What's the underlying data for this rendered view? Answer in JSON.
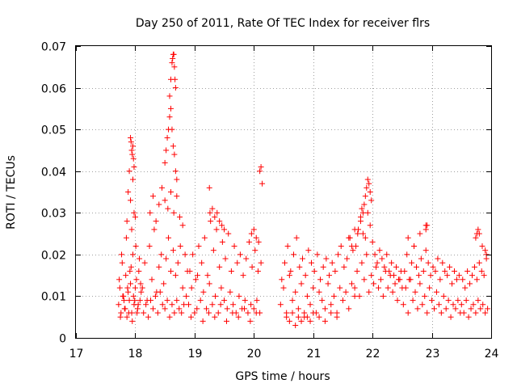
{
  "chart_data": {
    "type": "scatter",
    "title": "Day 250 of 2011, Rate Of TEC Index for receiver flrs",
    "xlabel": "GPS time / hours",
    "ylabel": "ROTI / TECUs",
    "xlim": [
      17,
      24
    ],
    "ylim": [
      0,
      0.07
    ],
    "xticks": [
      "17",
      "18",
      "19",
      "20",
      "21",
      "22",
      "23",
      "24"
    ],
    "yticks": [
      "0",
      "0.01",
      "0.02",
      "0.03",
      "0.04",
      "0.05",
      "0.06",
      "0.07"
    ],
    "grid": true,
    "marker": "+",
    "color": "#ff0000",
    "series": [
      {
        "name": "ROTI",
        "x": [
          17.72,
          17.74,
          17.76,
          17.78,
          17.8,
          17.82,
          17.84,
          17.86,
          17.88,
          17.9,
          17.92,
          17.94,
          17.96,
          17.98,
          18.0,
          18.02,
          18.04,
          18.06,
          18.08,
          18.1,
          17.73,
          17.77,
          17.81,
          17.85,
          17.89,
          17.93,
          17.97,
          18.01,
          18.05,
          18.09,
          17.75,
          17.79,
          17.83,
          17.87,
          17.91,
          17.95,
          17.99,
          18.03,
          18.07,
          17.86,
          17.88,
          17.9,
          17.92,
          17.94,
          17.96,
          17.98,
          18.0,
          17.92,
          17.93,
          17.94,
          17.95,
          17.96,
          17.97,
          17.98,
          18.12,
          18.16,
          18.2,
          18.24,
          18.28,
          18.32,
          18.36,
          18.4,
          18.44,
          18.48,
          18.52,
          18.56,
          18.6,
          18.64,
          18.68,
          18.72,
          18.76,
          18.8,
          18.84,
          18.88,
          18.14,
          18.18,
          18.22,
          18.26,
          18.3,
          18.34,
          18.38,
          18.42,
          18.46,
          18.5,
          18.54,
          18.58,
          18.62,
          18.66,
          18.7,
          18.74,
          18.78,
          18.82,
          18.86,
          18.25,
          18.3,
          18.35,
          18.4,
          18.45,
          18.5,
          18.55,
          18.6,
          18.65,
          18.7,
          18.75,
          18.8,
          18.5,
          18.52,
          18.54,
          18.56,
          18.58,
          18.6,
          18.62,
          18.64,
          18.66,
          18.68,
          18.7,
          18.58,
          18.6,
          18.62,
          18.63,
          18.64,
          18.65,
          18.66,
          18.67,
          18.68,
          18.9,
          18.95,
          19.0,
          19.05,
          19.1,
          19.15,
          19.2,
          19.25,
          19.3,
          19.35,
          19.4,
          19.45,
          19.5,
          19.55,
          19.6,
          19.65,
          19.7,
          19.75,
          19.8,
          19.85,
          19.9,
          19.95,
          20.0,
          20.05,
          20.1,
          18.92,
          18.97,
          19.02,
          19.07,
          19.12,
          19.17,
          19.22,
          19.27,
          19.32,
          19.37,
          19.42,
          19.47,
          19.52,
          19.57,
          19.62,
          19.67,
          19.72,
          19.77,
          19.82,
          19.87,
          19.92,
          19.97,
          20.02,
          20.07,
          20.12,
          18.94,
          19.04,
          19.14,
          19.24,
          19.34,
          19.44,
          19.54,
          19.64,
          19.74,
          19.84,
          19.94,
          20.04,
          19.26,
          19.3,
          19.34,
          19.38,
          19.42,
          19.46,
          19.5,
          19.96,
          20.0,
          20.04,
          20.08,
          19.25,
          20.1,
          20.12,
          20.14,
          20.45,
          20.5,
          20.55,
          20.6,
          20.65,
          20.7,
          20.75,
          20.8,
          20.85,
          20.9,
          20.95,
          21.0,
          21.05,
          21.1,
          21.15,
          21.2,
          21.25,
          21.3,
          21.35,
          21.4,
          21.45,
          21.5,
          21.55,
          21.6,
          21.65,
          21.7,
          20.47,
          20.52,
          20.57,
          20.62,
          20.67,
          20.72,
          20.77,
          20.82,
          20.87,
          20.92,
          20.97,
          21.02,
          21.07,
          21.12,
          21.17,
          21.22,
          21.27,
          21.32,
          21.37,
          21.42,
          21.47,
          21.52,
          21.57,
          21.62,
          21.67,
          20.55,
          20.6,
          20.65,
          20.7,
          20.75,
          20.8,
          20.85,
          20.9,
          20.95,
          21.0,
          21.1,
          21.2,
          21.3,
          21.4,
          21.7,
          21.74,
          21.78,
          21.82,
          21.86,
          21.9,
          21.94,
          21.98,
          22.02,
          22.06,
          22.1,
          22.14,
          22.18,
          22.22,
          22.26,
          22.3,
          22.34,
          22.38,
          22.42,
          22.46,
          22.5,
          21.72,
          21.76,
          21.8,
          21.84,
          21.88,
          21.92,
          21.96,
          22.0,
          22.04,
          22.08,
          22.12,
          22.16,
          22.2,
          22.24,
          22.28,
          22.32,
          22.36,
          22.4,
          22.44,
          22.48,
          21.8,
          21.82,
          21.84,
          21.86,
          21.88,
          21.9,
          21.92,
          21.94,
          21.96,
          21.98,
          21.6,
          21.65,
          21.7,
          21.75,
          22.52,
          22.56,
          22.6,
          22.64,
          22.68,
          22.72,
          22.76,
          22.8,
          22.84,
          22.88,
          22.92,
          22.96,
          23.0,
          23.04,
          23.08,
          23.12,
          23.16,
          23.2,
          23.24,
          23.28,
          23.32,
          23.36,
          23.4,
          23.44,
          23.48,
          22.54,
          22.58,
          22.62,
          22.66,
          22.7,
          22.74,
          22.78,
          22.82,
          22.86,
          22.9,
          22.94,
          22.98,
          23.02,
          23.06,
          23.1,
          23.14,
          23.18,
          23.22,
          23.26,
          23.3,
          23.34,
          23.38,
          23.42,
          23.46,
          22.6,
          22.7,
          22.8,
          22.9,
          22.9,
          22.92,
          23.5,
          23.54,
          23.58,
          23.62,
          23.66,
          23.7,
          23.74,
          23.78,
          23.82,
          23.86,
          23.9,
          23.94,
          23.52,
          23.56,
          23.6,
          23.64,
          23.68,
          23.72,
          23.76,
          23.8,
          23.84,
          23.88,
          23.92,
          23.74,
          23.76,
          23.78,
          23.8,
          23.85,
          23.9,
          23.92
        ],
        "y": [
          0.008,
          0.012,
          0.006,
          0.018,
          0.01,
          0.007,
          0.015,
          0.005,
          0.011,
          0.009,
          0.013,
          0.006,
          0.02,
          0.008,
          0.012,
          0.014,
          0.007,
          0.016,
          0.009,
          0.011,
          0.014,
          0.02,
          0.009,
          0.024,
          0.006,
          0.017,
          0.01,
          0.022,
          0.008,
          0.013,
          0.005,
          0.01,
          0.007,
          0.012,
          0.016,
          0.004,
          0.009,
          0.006,
          0.019,
          0.028,
          0.035,
          0.04,
          0.033,
          0.026,
          0.038,
          0.03,
          0.029,
          0.048,
          0.047,
          0.045,
          0.044,
          0.046,
          0.043,
          0.041,
          0.012,
          0.018,
          0.009,
          0.022,
          0.014,
          0.026,
          0.011,
          0.017,
          0.02,
          0.013,
          0.019,
          0.024,
          0.016,
          0.021,
          0.015,
          0.018,
          0.022,
          0.012,
          0.02,
          0.016,
          0.006,
          0.008,
          0.005,
          0.009,
          0.007,
          0.01,
          0.006,
          0.011,
          0.008,
          0.007,
          0.009,
          0.005,
          0.008,
          0.006,
          0.009,
          0.007,
          0.006,
          0.008,
          0.01,
          0.03,
          0.034,
          0.028,
          0.032,
          0.036,
          0.033,
          0.031,
          0.035,
          0.03,
          0.034,
          0.029,
          0.027,
          0.042,
          0.045,
          0.048,
          0.05,
          0.053,
          0.055,
          0.05,
          0.046,
          0.044,
          0.04,
          0.038,
          0.058,
          0.062,
          0.066,
          0.067,
          0.068,
          0.068,
          0.065,
          0.062,
          0.06,
          0.008,
          0.012,
          0.006,
          0.015,
          0.009,
          0.011,
          0.007,
          0.013,
          0.008,
          0.01,
          0.006,
          0.012,
          0.009,
          0.007,
          0.011,
          0.008,
          0.006,
          0.01,
          0.007,
          0.009,
          0.006,
          0.008,
          0.007,
          0.009,
          0.006,
          0.016,
          0.02,
          0.014,
          0.022,
          0.018,
          0.024,
          0.015,
          0.028,
          0.021,
          0.026,
          0.017,
          0.023,
          0.019,
          0.025,
          0.016,
          0.022,
          0.018,
          0.02,
          0.015,
          0.019,
          0.023,
          0.017,
          0.021,
          0.016,
          0.018,
          0.005,
          0.007,
          0.004,
          0.006,
          0.005,
          0.008,
          0.004,
          0.006,
          0.005,
          0.007,
          0.004,
          0.006,
          0.03,
          0.031,
          0.029,
          0.03,
          0.028,
          0.027,
          0.026,
          0.025,
          0.026,
          0.024,
          0.023,
          0.036,
          0.04,
          0.041,
          0.037,
          0.008,
          0.012,
          0.006,
          0.015,
          0.009,
          0.011,
          0.007,
          0.013,
          0.005,
          0.01,
          0.008,
          0.012,
          0.006,
          0.011,
          0.009,
          0.007,
          0.013,
          0.008,
          0.01,
          0.006,
          0.012,
          0.009,
          0.011,
          0.007,
          0.013,
          0.01,
          0.014,
          0.018,
          0.022,
          0.016,
          0.02,
          0.024,
          0.017,
          0.019,
          0.015,
          0.021,
          0.018,
          0.016,
          0.02,
          0.014,
          0.017,
          0.019,
          0.015,
          0.018,
          0.016,
          0.02,
          0.022,
          0.017,
          0.019,
          0.024,
          0.021,
          0.005,
          0.004,
          0.006,
          0.003,
          0.005,
          0.004,
          0.006,
          0.005,
          0.004,
          0.006,
          0.005,
          0.004,
          0.006,
          0.005,
          0.012,
          0.016,
          0.01,
          0.018,
          0.014,
          0.02,
          0.011,
          0.015,
          0.013,
          0.017,
          0.012,
          0.014,
          0.01,
          0.016,
          0.012,
          0.015,
          0.011,
          0.013,
          0.009,
          0.014,
          0.012,
          0.022,
          0.026,
          0.028,
          0.025,
          0.024,
          0.03,
          0.027,
          0.023,
          0.02,
          0.018,
          0.021,
          0.019,
          0.017,
          0.02,
          0.016,
          0.018,
          0.015,
          0.017,
          0.014,
          0.016,
          0.029,
          0.031,
          0.03,
          0.032,
          0.034,
          0.036,
          0.038,
          0.037,
          0.035,
          0.033,
          0.024,
          0.022,
          0.026,
          0.025,
          0.008,
          0.012,
          0.006,
          0.014,
          0.009,
          0.011,
          0.007,
          0.013,
          0.008,
          0.01,
          0.006,
          0.012,
          0.009,
          0.007,
          0.011,
          0.008,
          0.006,
          0.01,
          0.007,
          0.009,
          0.005,
          0.008,
          0.007,
          0.009,
          0.006,
          0.016,
          0.02,
          0.014,
          0.018,
          0.022,
          0.017,
          0.015,
          0.019,
          0.016,
          0.021,
          0.018,
          0.015,
          0.017,
          0.016,
          0.019,
          0.014,
          0.018,
          0.016,
          0.015,
          0.017,
          0.013,
          0.016,
          0.014,
          0.015,
          0.024,
          0.022,
          0.025,
          0.027,
          0.026,
          0.027,
          0.008,
          0.006,
          0.009,
          0.005,
          0.007,
          0.008,
          0.006,
          0.009,
          0.007,
          0.008,
          0.006,
          0.007,
          0.014,
          0.012,
          0.016,
          0.013,
          0.015,
          0.017,
          0.014,
          0.018,
          0.016,
          0.015,
          0.019,
          0.024,
          0.025,
          0.026,
          0.025,
          0.022,
          0.021,
          0.02
        ]
      }
    ]
  }
}
